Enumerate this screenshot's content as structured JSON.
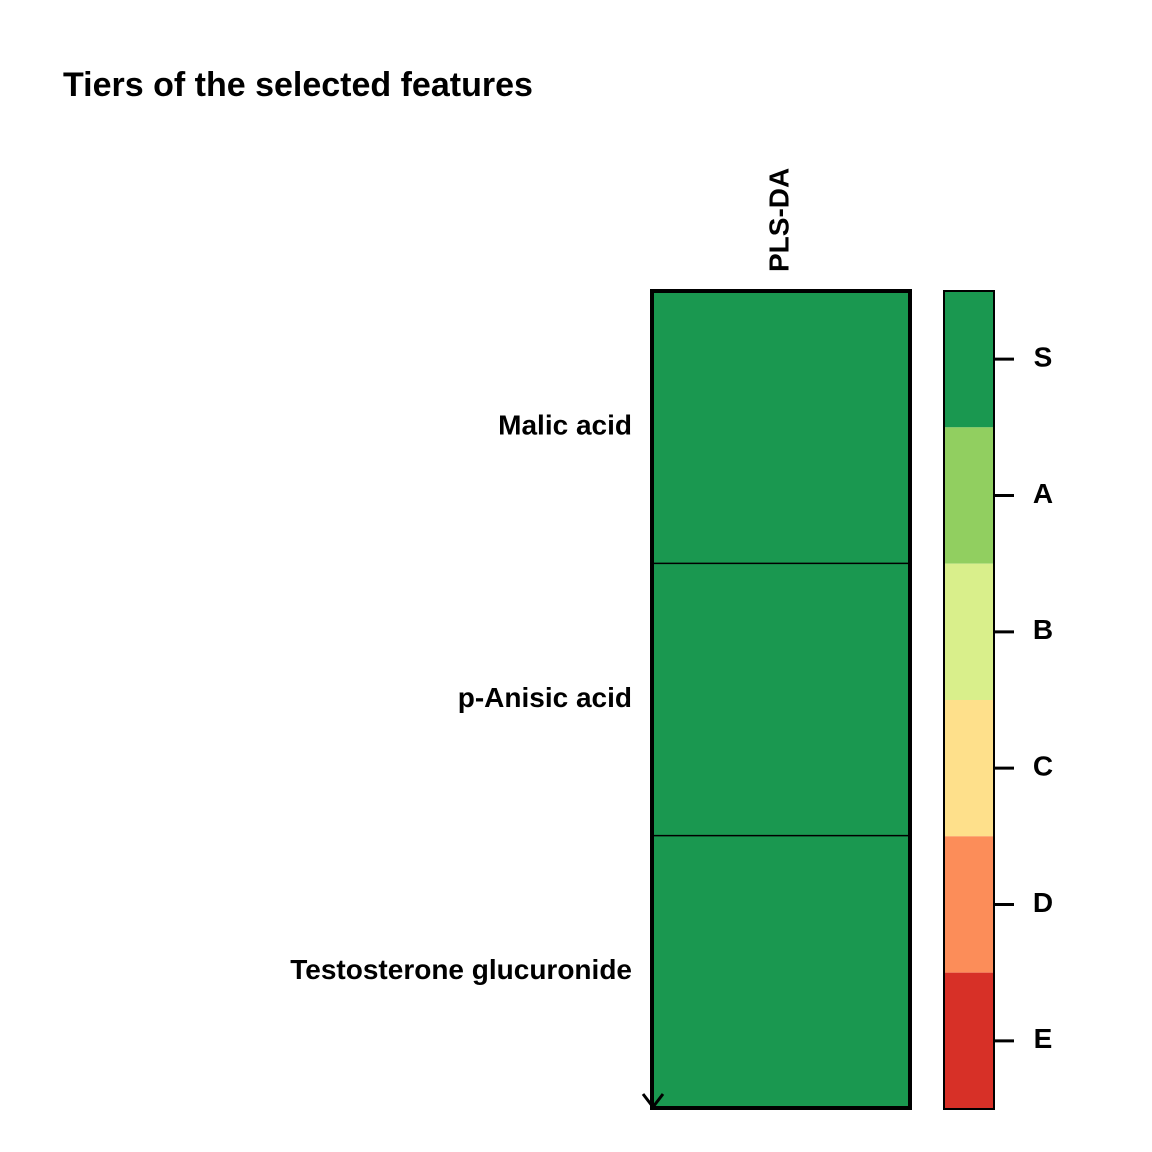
{
  "chart_data": {
    "type": "heatmap",
    "title": "Tiers of the selected features",
    "columns": [
      "PLS-DA"
    ],
    "rows": [
      "Malic acid",
      "p-Anisic acid",
      "Testosterone glucuronide"
    ],
    "values": [
      [
        "S"
      ],
      [
        "S"
      ],
      [
        "S"
      ]
    ],
    "legend": {
      "placement": "right",
      "levels": [
        {
          "tier": "S",
          "color": "#1A9850"
        },
        {
          "tier": "A",
          "color": "#91CF60"
        },
        {
          "tier": "B",
          "color": "#D9EF8B"
        },
        {
          "tier": "C",
          "color": "#FEE08B"
        },
        {
          "tier": "D",
          "color": "#FC8D59"
        },
        {
          "tier": "E",
          "color": "#D73027"
        }
      ]
    },
    "colors": {
      "grid_line": "#000000",
      "border": "#000000"
    }
  }
}
